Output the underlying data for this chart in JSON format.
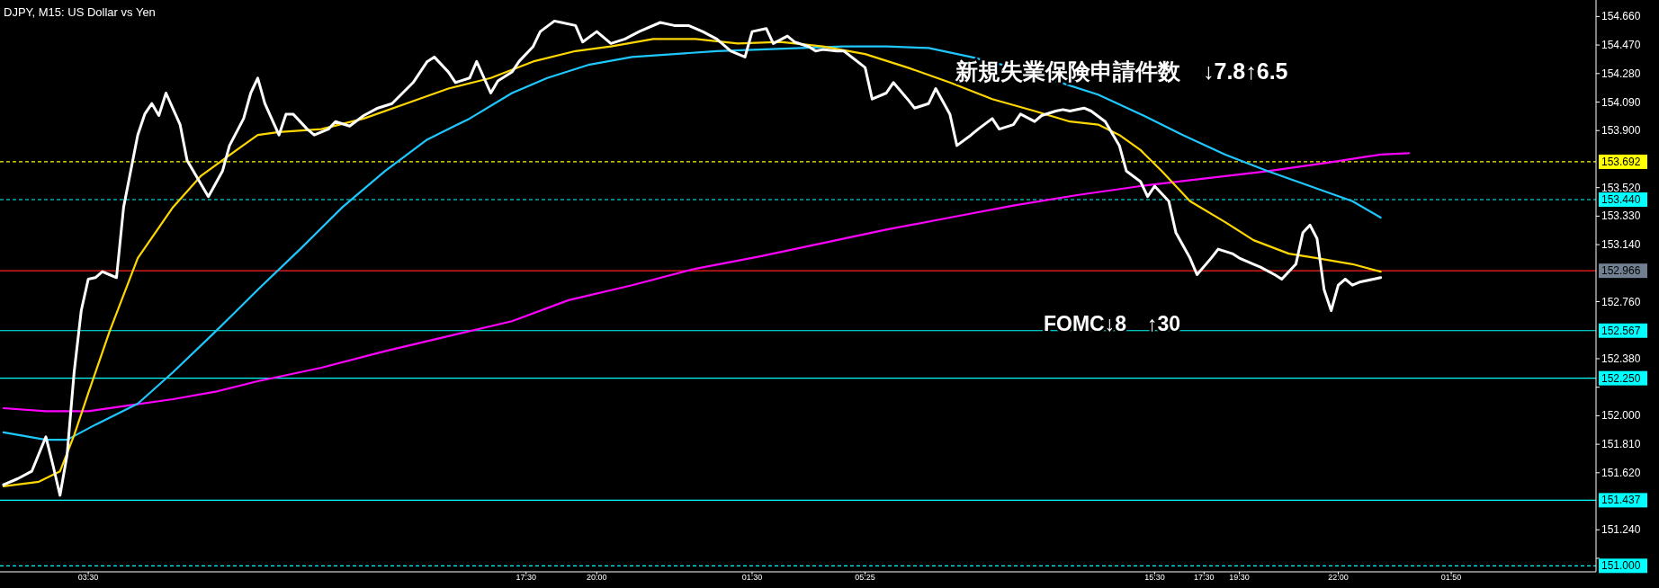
{
  "chart_data": {
    "type": "line",
    "title": "DJPY, M15:  US Dollar vs Yen",
    "annotations": [
      "新規失業保険申請件数　↓7.8↑6.5",
      "FOMC↓8　↑30"
    ],
    "categories": [
      null,
      null,
      null,
      null,
      null,
      null,
      null,
      null,
      null,
      null,
      null,
      null,
      "03:30",
      null,
      null,
      null,
      null,
      null,
      null,
      null,
      null,
      null,
      null,
      null,
      null,
      null,
      null,
      null,
      null,
      null,
      null,
      null,
      null,
      null,
      null,
      null,
      null,
      null,
      null,
      null,
      null,
      null,
      null,
      null,
      null,
      null,
      null,
      null,
      null,
      null,
      null,
      null,
      null,
      null,
      null,
      null,
      null,
      null,
      null,
      null,
      null,
      null,
      null,
      null,
      null,
      null,
      null,
      null,
      null,
      null,
      null,
      null,
      null,
      null,
      "17:30",
      null,
      null,
      null,
      null,
      null,
      null,
      null,
      null,
      null,
      "20:00",
      null,
      null,
      null,
      null,
      null,
      null,
      null,
      null,
      null,
      null,
      null,
      null,
      null,
      null,
      null,
      null,
      null,
      null,
      null,
      null,
      null,
      "01:30",
      null,
      null,
      null,
      null,
      null,
      null,
      null,
      null,
      null,
      null,
      null,
      null,
      null,
      null,
      null,
      "05:25",
      null,
      null,
      null,
      null,
      null,
      null,
      null,
      null,
      null,
      null,
      null,
      null,
      null,
      null,
      null,
      null,
      null,
      null,
      null,
      null,
      null,
      null,
      null,
      null,
      null,
      null,
      null,
      null,
      null,
      null,
      null,
      null,
      null,
      null,
      null,
      null,
      null,
      null,
      null,
      null,
      "15:30",
      null,
      null,
      null,
      null,
      null,
      null,
      "17:30",
      null,
      null,
      null,
      null,
      "19:30",
      null,
      null,
      null,
      null,
      null,
      null,
      null,
      null,
      null,
      null,
      null,
      null,
      null,
      "22:00",
      null,
      null,
      null,
      null,
      null,
      null,
      null,
      null,
      null,
      null,
      null,
      null,
      null,
      null,
      null,
      "01:50",
      null,
      null,
      null,
      null,
      null,
      null,
      null,
      null,
      null,
      null,
      null,
      null,
      null,
      null,
      null,
      null,
      null,
      null,
      null,
      null
    ],
    "ylim": [
      150.96,
      154.77
    ],
    "yticks": [
      {
        "value": 154.66,
        "label": "154.660"
      },
      {
        "value": 154.47,
        "label": "154.470"
      },
      {
        "value": 154.28,
        "label": "154.280"
      },
      {
        "value": 154.09,
        "label": "154.090"
      },
      {
        "value": 153.9,
        "label": "153.900"
      },
      {
        "value": 153.52,
        "label": "153.520"
      },
      {
        "value": 153.33,
        "label": "153.330"
      },
      {
        "value": 153.14,
        "label": "153.140"
      },
      {
        "value": 152.76,
        "label": "152.760"
      },
      {
        "value": 152.38,
        "label": "152.380"
      },
      {
        "value": 152.19,
        "label": null
      },
      {
        "value": 152.0,
        "label": "152.000"
      },
      {
        "value": 151.81,
        "label": "151.810"
      },
      {
        "value": 151.62,
        "label": "151.620"
      },
      {
        "value": 151.24,
        "label": "151.240"
      },
      {
        "value": 151.05,
        "label": null
      }
    ],
    "grid": false,
    "ref_lines": [
      {
        "axis": "y",
        "value": 153.692,
        "label": "153.692",
        "color": "#ffff00",
        "line_style": "dashed"
      },
      {
        "axis": "y",
        "value": 153.44,
        "label": "153.440",
        "color": "#00ffff",
        "line_style": "dashed"
      },
      {
        "axis": "y",
        "value": 152.966,
        "label": "152.966",
        "color": "#ff2020",
        "line_style": "solid"
      },
      {
        "axis": "y",
        "value": 152.567,
        "label": "152.567",
        "color": "#00ffff",
        "line_style": "solid"
      },
      {
        "axis": "y",
        "value": 152.25,
        "label": "152.250",
        "color": "#00ffff",
        "line_style": "solid"
      },
      {
        "axis": "y",
        "value": 151.437,
        "label": "151.437",
        "color": "#00ffff",
        "line_style": "solid"
      },
      {
        "axis": "y",
        "value": 151.0,
        "label": "151.000",
        "color": "#00ffff",
        "line_style": "dashed"
      }
    ],
    "series": [
      {
        "color": "#ff00ff",
        "values": [
          152.05,
          null,
          null,
          null,
          null,
          null,
          152.03,
          null,
          null,
          null,
          null,
          null,
          152.03,
          null,
          null,
          null,
          null,
          null,
          152.07,
          null,
          null,
          null,
          null,
          null,
          152.11,
          null,
          null,
          null,
          null,
          null,
          152.16,
          null,
          null,
          null,
          null,
          null,
          152.23,
          null,
          null,
          null,
          null,
          null,
          null,
          null,
          null,
          152.32,
          null,
          null,
          null,
          null,
          null,
          null,
          null,
          null,
          152.43,
          null,
          null,
          null,
          null,
          null,
          null,
          null,
          null,
          152.53,
          null,
          null,
          null,
          null,
          null,
          null,
          null,
          null,
          152.63,
          null,
          null,
          null,
          null,
          null,
          null,
          null,
          152.77,
          null,
          null,
          null,
          null,
          null,
          null,
          null,
          null,
          152.87,
          null,
          null,
          null,
          null,
          null,
          null,
          null,
          null,
          152.98,
          null,
          null,
          null,
          null,
          null,
          null,
          null,
          null,
          153.06,
          null,
          null,
          null,
          null,
          null,
          null,
          null,
          null,
          153.15,
          null,
          null,
          null,
          null,
          null,
          null,
          null,
          null,
          153.24,
          null,
          null,
          null,
          null,
          null,
          null,
          null,
          null,
          153.32,
          null,
          null,
          null,
          null,
          null,
          null,
          null,
          null,
          153.4,
          null,
          null,
          null,
          null,
          null,
          null,
          null,
          null,
          153.47,
          null,
          null,
          null,
          null,
          null,
          null,
          null,
          null,
          153.53,
          null,
          null,
          null,
          null,
          null,
          null,
          null,
          null,
          153.58,
          null,
          null,
          null,
          null,
          null,
          null,
          null,
          null,
          153.63,
          null,
          null,
          null,
          null,
          null,
          null,
          null,
          null,
          153.69,
          null,
          null,
          null,
          null,
          null,
          null,
          153.74,
          null,
          null,
          null,
          153.75,
          null,
          null,
          null,
          null,
          null,
          null,
          null,
          null,
          null,
          null,
          null,
          null,
          null,
          null,
          null,
          null,
          null,
          null,
          null,
          null,
          null,
          null,
          null,
          null,
          null,
          null
        ]
      },
      {
        "color": "#1ec8ff",
        "values": [
          151.89,
          null,
          null,
          null,
          null,
          null,
          151.84,
          null,
          null,
          151.84,
          null,
          null,
          null,
          151.94,
          null,
          null,
          null,
          null,
          null,
          152.08,
          null,
          null,
          null,
          null,
          152.29,
          null,
          null,
          null,
          null,
          null,
          152.56,
          null,
          null,
          null,
          null,
          null,
          152.84,
          null,
          null,
          null,
          null,
          null,
          153.11,
          null,
          null,
          null,
          null,
          null,
          153.39,
          null,
          null,
          null,
          null,
          null,
          153.63,
          null,
          null,
          null,
          null,
          null,
          153.84,
          null,
          null,
          null,
          null,
          null,
          153.98,
          null,
          null,
          null,
          null,
          null,
          154.15,
          null,
          null,
          null,
          null,
          154.25,
          null,
          null,
          null,
          null,
          null,
          154.34,
          null,
          null,
          null,
          null,
          null,
          154.39,
          null,
          null,
          null,
          null,
          null,
          154.41,
          null,
          null,
          null,
          null,
          null,
          154.43,
          null,
          null,
          null,
          null,
          null,
          154.44,
          null,
          null,
          null,
          null,
          null,
          154.45,
          null,
          null,
          null,
          null,
          null,
          154.46,
          null,
          null,
          null,
          null,
          null,
          154.46,
          null,
          null,
          null,
          null,
          null,
          154.45,
          null,
          null,
          null,
          null,
          null,
          154.39,
          null,
          null,
          null,
          null,
          null,
          154.32,
          null,
          null,
          null,
          null,
          null,
          154.23,
          null,
          null,
          null,
          null,
          null,
          154.14,
          null,
          null,
          null,
          null,
          null,
          154.01,
          null,
          null,
          null,
          null,
          null,
          153.87,
          null,
          null,
          null,
          null,
          null,
          153.74,
          null,
          null,
          null,
          null,
          null,
          153.63,
          null,
          null,
          null,
          null,
          null,
          153.53,
          null,
          null,
          null,
          null,
          null,
          153.43,
          null,
          null,
          null,
          153.32,
          null,
          null,
          null,
          null,
          null,
          null,
          null,
          null,
          null,
          null,
          null,
          null,
          null,
          null,
          null,
          null,
          null,
          null,
          null,
          null,
          null,
          null,
          null,
          null,
          null,
          null,
          null,
          null,
          null,
          null
        ]
      },
      {
        "color": "#ffd700",
        "values": [
          151.53,
          null,
          null,
          null,
          null,
          151.56,
          null,
          null,
          151.63,
          null,
          151.87,
          null,
          152.15,
          null,
          null,
          152.56,
          null,
          null,
          null,
          153.05,
          null,
          null,
          null,
          null,
          153.39,
          null,
          null,
          null,
          153.6,
          null,
          null,
          null,
          null,
          153.77,
          null,
          null,
          153.87,
          null,
          null,
          153.89,
          null,
          null,
          null,
          null,
          null,
          153.91,
          null,
          null,
          null,
          null,
          null,
          153.98,
          null,
          null,
          null,
          null,
          null,
          154.08,
          null,
          null,
          null,
          null,
          null,
          154.18,
          null,
          null,
          null,
          null,
          null,
          154.25,
          null,
          null,
          null,
          null,
          null,
          154.36,
          null,
          null,
          null,
          null,
          null,
          154.43,
          null,
          null,
          null,
          null,
          154.46,
          null,
          null,
          null,
          null,
          null,
          154.51,
          null,
          null,
          null,
          null,
          null,
          154.51,
          null,
          null,
          null,
          null,
          null,
          154.48,
          null,
          null,
          null,
          null,
          null,
          154.49,
          null,
          null,
          null,
          null,
          null,
          154.46,
          null,
          null,
          null,
          null,
          null,
          154.41,
          null,
          null,
          null,
          null,
          null,
          154.32,
          null,
          null,
          null,
          null,
          null,
          154.22,
          null,
          null,
          null,
          null,
          null,
          154.11,
          null,
          null,
          null,
          null,
          null,
          154.03,
          null,
          null,
          null,
          null,
          153.96,
          null,
          null,
          null,
          153.94,
          null,
          null,
          153.87,
          null,
          null,
          153.77,
          null,
          null,
          153.63,
          null,
          null,
          null,
          153.43,
          null,
          null,
          null,
          null,
          153.29,
          null,
          null,
          null,
          153.17,
          null,
          null,
          null,
          null,
          153.08,
          null,
          null,
          null,
          153.05,
          null,
          null,
          null,
          null,
          153.01,
          null,
          null,
          null,
          152.96,
          null,
          null,
          null,
          null,
          null,
          null,
          null,
          null,
          null,
          null,
          null,
          null,
          null,
          null,
          null,
          null,
          null,
          null,
          null,
          null,
          null,
          null,
          null,
          null,
          null,
          null,
          null,
          null,
          null,
          null
        ]
      },
      {
        "color": "#ffffff",
        "values": [
          151.54,
          null,
          151.58,
          null,
          151.63,
          null,
          151.86,
          151.67,
          151.47,
          151.74,
          152.29,
          152.7,
          152.91,
          152.92,
          152.96,
          152.94,
          152.92,
          153.39,
          null,
          153.87,
          154.01,
          154.08,
          154.0,
          154.15,
          null,
          153.94,
          153.7,
          null,
          153.54,
          153.46,
          null,
          153.63,
          153.8,
          null,
          153.98,
          154.15,
          154.25,
          154.08,
          null,
          153.87,
          154.01,
          154.01,
          null,
          153.91,
          153.87,
          null,
          153.91,
          153.96,
          null,
          153.93,
          null,
          154.0,
          null,
          154.05,
          null,
          154.08,
          null,
          null,
          154.22,
          null,
          154.36,
          154.39,
          null,
          154.29,
          154.22,
          null,
          154.25,
          154.36,
          null,
          154.15,
          154.23,
          null,
          154.29,
          154.36,
          null,
          154.46,
          154.56,
          null,
          154.63,
          154.62,
          null,
          154.6,
          154.49,
          null,
          154.56,
          null,
          154.48,
          null,
          154.51,
          null,
          154.56,
          null,
          null,
          154.62,
          null,
          154.6,
          null,
          154.6,
          null,
          154.56,
          null,
          154.51,
          null,
          154.43,
          null,
          154.39,
          154.56,
          null,
          154.58,
          154.48,
          null,
          154.53,
          154.49,
          null,
          154.46,
          154.43,
          154.44,
          null,
          154.43,
          154.43,
          null,
          null,
          154.32,
          154.11,
          null,
          154.15,
          154.22,
          null,
          154.11,
          154.05,
          null,
          154.08,
          154.18,
          null,
          154.01,
          153.8,
          null,
          153.87,
          153.91,
          null,
          153.98,
          153.91,
          null,
          153.94,
          154.01,
          null,
          153.96,
          154.0,
          null,
          154.03,
          154.04,
          154.03,
          null,
          154.05,
          154.03,
          null,
          153.96,
          null,
          153.8,
          153.63,
          null,
          153.56,
          153.46,
          153.53,
          null,
          153.43,
          153.22,
          null,
          153.05,
          152.94,
          null,
          153.05,
          153.11,
          null,
          153.08,
          153.05,
          null,
          153.01,
          152.99,
          null,
          152.94,
          152.91,
          null,
          153.01,
          153.22,
          153.27,
          153.18,
          152.84,
          152.7,
          152.87,
          152.91,
          152.87,
          152.89,
          null,
          152.91,
          152.92,
          null,
          null,
          null,
          null,
          null,
          null,
          null,
          null,
          null,
          null,
          null,
          null,
          null,
          null,
          null,
          null,
          null,
          null,
          null,
          null,
          null,
          null,
          null,
          null,
          null,
          null,
          null,
          null,
          null,
          null
        ]
      }
    ]
  }
}
